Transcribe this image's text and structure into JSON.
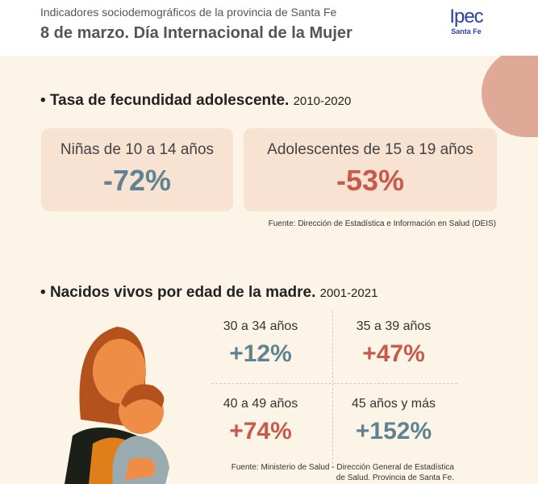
{
  "header": {
    "subtitle": "Indicadores sociodemográficos de la provincia de Santa Fe",
    "title": "8 de marzo. Día Internacional de la Mujer",
    "logo_main": "Ipec",
    "logo_sub": "Santa Fe"
  },
  "section1": {
    "title": "Tasa de fecundidad adolescente.",
    "period": "2010-2020",
    "cards": [
      {
        "label": "Niñas de 10 a 14 años",
        "value": "-72%"
      },
      {
        "label": "Adolescentes de 15 a 19 años",
        "value": "-53%"
      }
    ],
    "source": "Fuente: Dirección de Estadística e Información en Salud (DEIS)"
  },
  "section2": {
    "title": "Nacidos vivos por edad de la madre.",
    "period": "2001-2021",
    "cells": [
      {
        "label": "30 a 34 años",
        "value": "+12%"
      },
      {
        "label": "35 a 39 años",
        "value": "+47%"
      },
      {
        "label": "40 a 49 años",
        "value": "+74%"
      },
      {
        "label": "45 años y más",
        "value": "+152%"
      }
    ],
    "source_line1": "Fuente: Ministerio de Salud - Dirección General de Estadística",
    "source_line2": "de Salud. Provincia de Santa Fe."
  },
  "colors": {
    "blue": "#5f8391",
    "red": "#c85a4c"
  }
}
